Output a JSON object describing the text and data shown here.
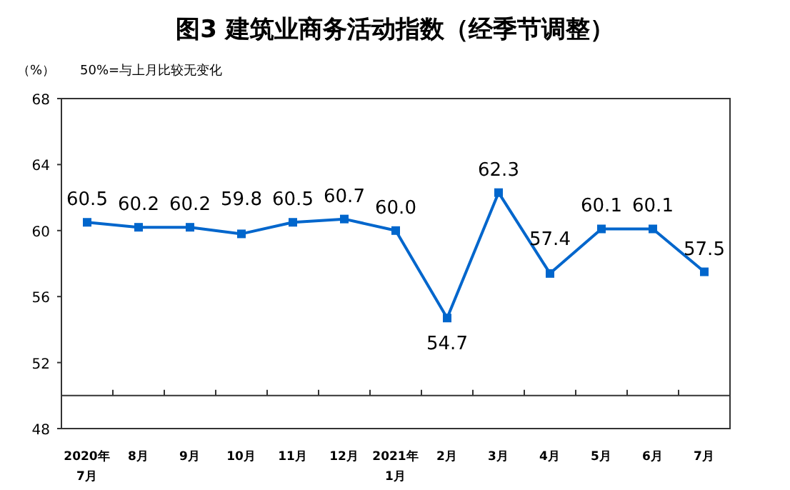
{
  "chart_data": {
    "type": "line",
    "title": "图3  建筑业商务活动指数（经季节调整）",
    "ylabel": "（%）",
    "annotations": [
      "50%=与上月比较无变化"
    ],
    "categories": [
      "2020年\n7月",
      "8月",
      "9月",
      "10月",
      "11月",
      "12月",
      "2021年\n1月",
      "2月",
      "3月",
      "4月",
      "5月",
      "6月",
      "7月"
    ],
    "series": [
      {
        "color": "#0066cc",
        "values": [
          60.5,
          60.2,
          60.2,
          59.8,
          60.5,
          60.7,
          60.0,
          54.7,
          62.3,
          57.4,
          60.1,
          60.1,
          57.5
        ],
        "value_labels": [
          "60.5",
          "60.2",
          "60.2",
          "59.8",
          "60.5",
          "60.7",
          "60.0",
          "54.7",
          "62.3",
          "57.4",
          "60.1",
          "60.1",
          "57.5"
        ]
      }
    ],
    "ylim": [
      48,
      68
    ],
    "yticks": [
      48,
      52,
      56,
      60,
      64,
      68
    ],
    "ref_lines": [
      {
        "axis": "y",
        "value": 50,
        "color": "#333333"
      }
    ],
    "marker": "square",
    "line_style": "solid",
    "grid": false
  }
}
